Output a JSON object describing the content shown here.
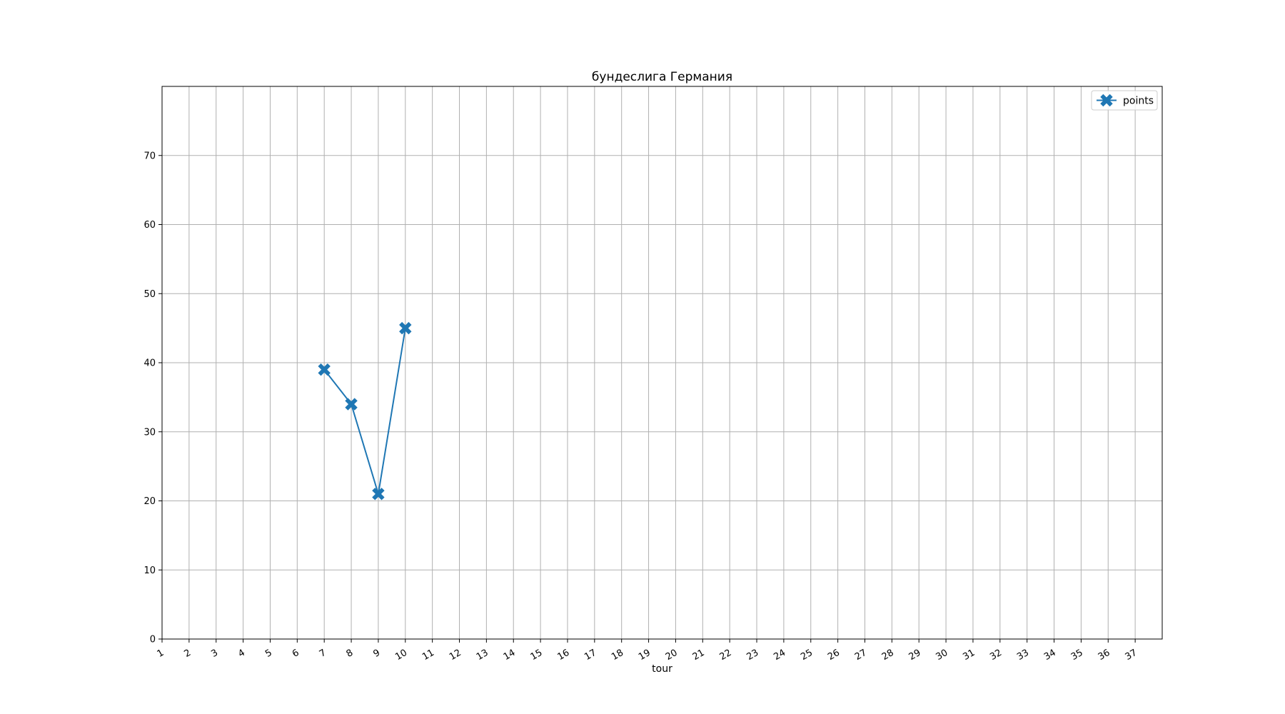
{
  "chart_data": {
    "type": "line",
    "title": "бундеслига Германия",
    "xlabel": "tour",
    "ylabel": "",
    "x_ticks": [
      "1",
      "2",
      "3",
      "4",
      "5",
      "6",
      "7",
      "8",
      "9",
      "10",
      "11",
      "12",
      "13",
      "14",
      "15",
      "16",
      "17",
      "18",
      "19",
      "20",
      "21",
      "22",
      "23",
      "24",
      "25",
      "26",
      "27",
      "28",
      "29",
      "30",
      "31",
      "32",
      "33",
      "34",
      "35",
      "36",
      "37"
    ],
    "xlim": [
      1,
      38
    ],
    "ylim": [
      0,
      80
    ],
    "y_ticks": [
      0,
      10,
      20,
      30,
      40,
      50,
      60,
      70
    ],
    "grid": true,
    "legend_position": "top-right",
    "series": [
      {
        "name": "points",
        "color": "#1f77b4",
        "marker": "X",
        "x": [
          7,
          8,
          9,
          10
        ],
        "y": [
          39,
          34,
          21,
          45
        ]
      }
    ]
  }
}
